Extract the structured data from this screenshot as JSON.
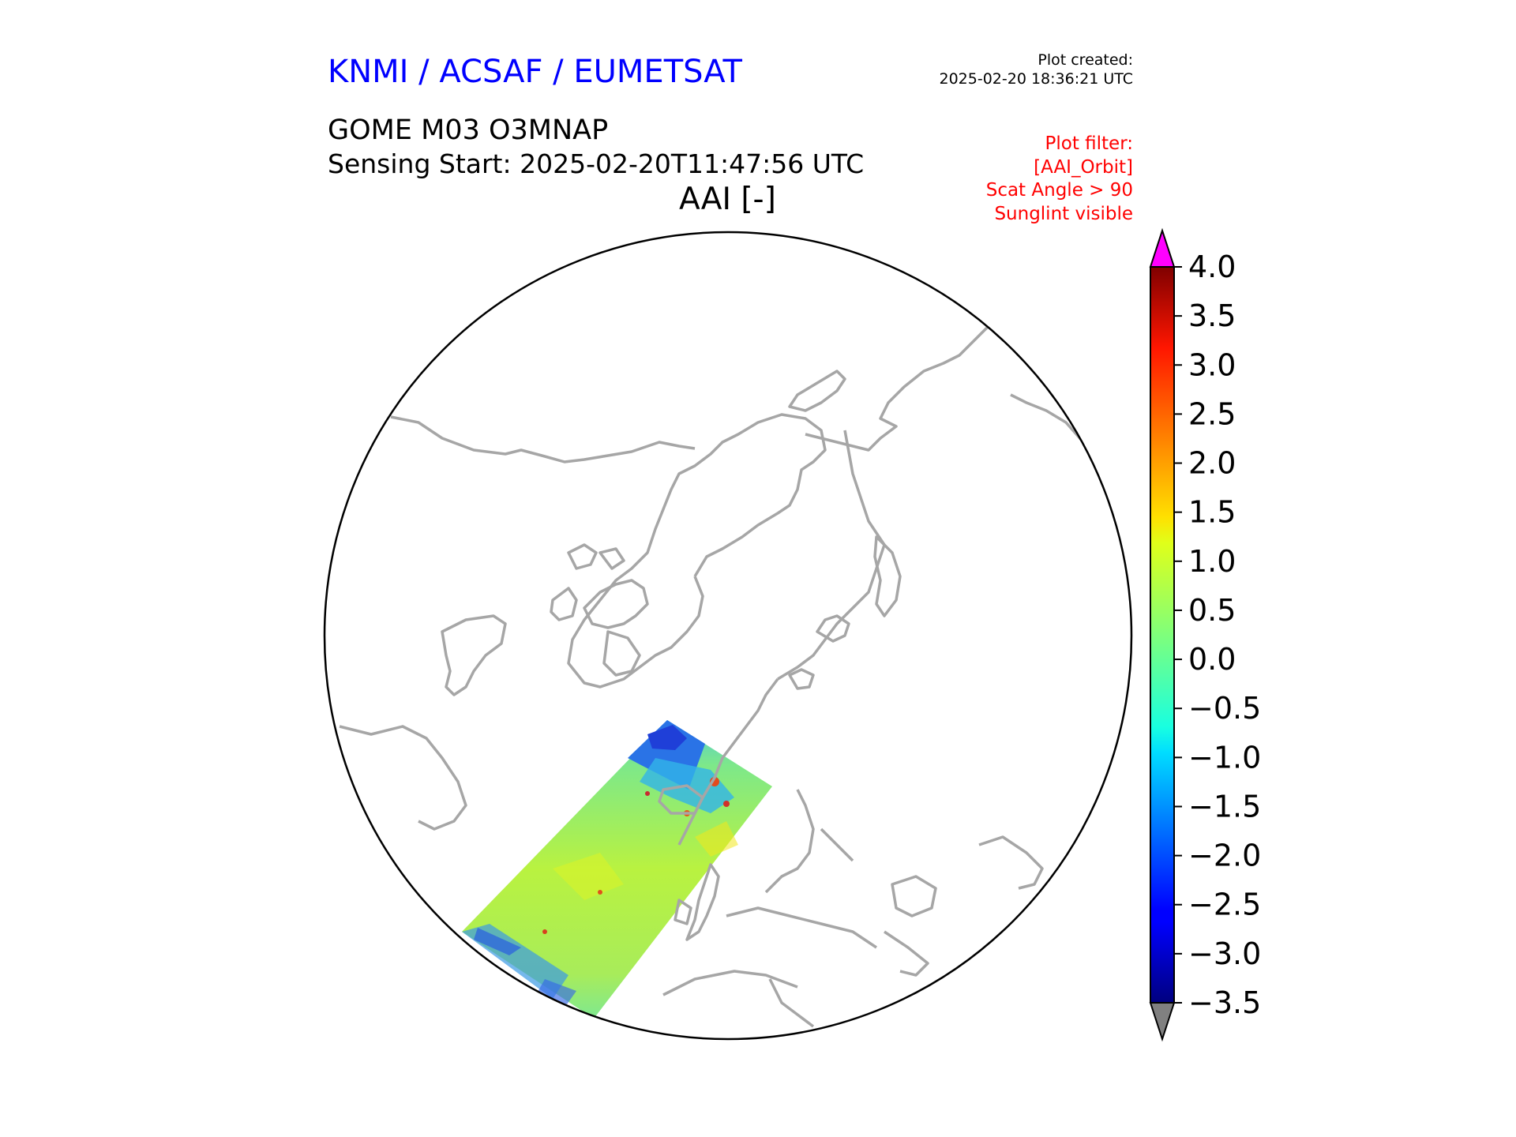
{
  "header": {
    "agency": "KNMI / ACSAF / EUMETSAT",
    "plot_created_label": "Plot created:",
    "plot_created_time": "2025-02-20 18:36:21 UTC",
    "product": "GOME M03 O3MNAP",
    "sensing_start": "Sensing Start: 2025-02-20T11:47:56 UTC"
  },
  "filter": {
    "title": "Plot filter:",
    "lines": [
      "[AAI_Orbit]",
      "Scat Angle > 90",
      "Sunglint visible"
    ]
  },
  "plot": {
    "title": "AAI [-]",
    "projection": "north-polar-stereographic",
    "coastline_color": "#a6a6a6",
    "swath_dominant_value_range": [
      0.0,
      1.5
    ]
  },
  "colorbar": {
    "vmin": -3.5,
    "vmax": 4.0,
    "tick_labels": [
      "4.0",
      "3.5",
      "3.0",
      "2.5",
      "2.0",
      "1.5",
      "1.0",
      "0.5",
      "0.0",
      "−0.5",
      "−1.0",
      "−1.5",
      "−2.0",
      "−2.5",
      "−3.0",
      "−3.5"
    ],
    "over_color": "#ff00ff",
    "under_color": "#808080",
    "colormap": "jet"
  }
}
